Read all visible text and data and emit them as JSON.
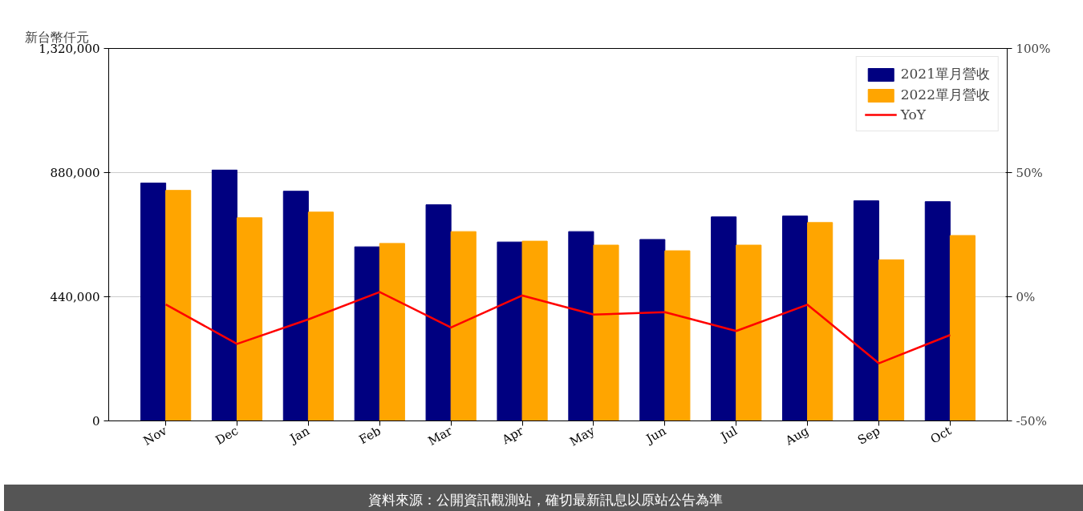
{
  "chart_data": {
    "type": "bar",
    "ylabel": "新台幣仟元",
    "categories": [
      "Nov",
      "Dec",
      "Jan",
      "Feb",
      "Mar",
      "Apr",
      "May",
      "Jun",
      "Jul",
      "Aug",
      "Sep",
      "Oct"
    ],
    "series": [
      {
        "name": "2021單月營收",
        "color": "#000080",
        "values": [
          843000,
          889000,
          814000,
          617000,
          766000,
          634000,
          671000,
          643000,
          723000,
          726000,
          780000,
          777000
        ]
      },
      {
        "name": "2022單月營收",
        "color": "#ffa500",
        "values": [
          817000,
          720000,
          740000,
          629000,
          671000,
          637000,
          623000,
          603000,
          623000,
          703000,
          571000,
          657000
        ]
      },
      {
        "name": "YoY",
        "type": "line",
        "axis": "y2",
        "color": "#ff0000",
        "values": [
          -3.1,
          -19.0,
          -9.1,
          1.9,
          -12.4,
          0.5,
          -7.2,
          -6.2,
          -13.8,
          -3.2,
          -26.8,
          -15.4
        ]
      }
    ],
    "ylim": [
      0,
      1320000
    ],
    "yticks": [
      {
        "value": 0,
        "label": "0"
      },
      {
        "value": 440000,
        "label": "440,000"
      },
      {
        "value": 880000,
        "label": "880,000"
      },
      {
        "value": 1320000,
        "label": "1,320,000"
      }
    ],
    "y2lim": [
      -50,
      100
    ],
    "y2ticks": [
      {
        "value": -50,
        "label": "-50%"
      },
      {
        "value": 0,
        "label": "0%"
      },
      {
        "value": 50,
        "label": "50%"
      },
      {
        "value": 100,
        "label": "100%"
      }
    ],
    "grid": "y",
    "legend": "top right",
    "annotations": [
      "資料來源：公開資訊觀測站，確切最新訊息以原站公告為準"
    ]
  }
}
